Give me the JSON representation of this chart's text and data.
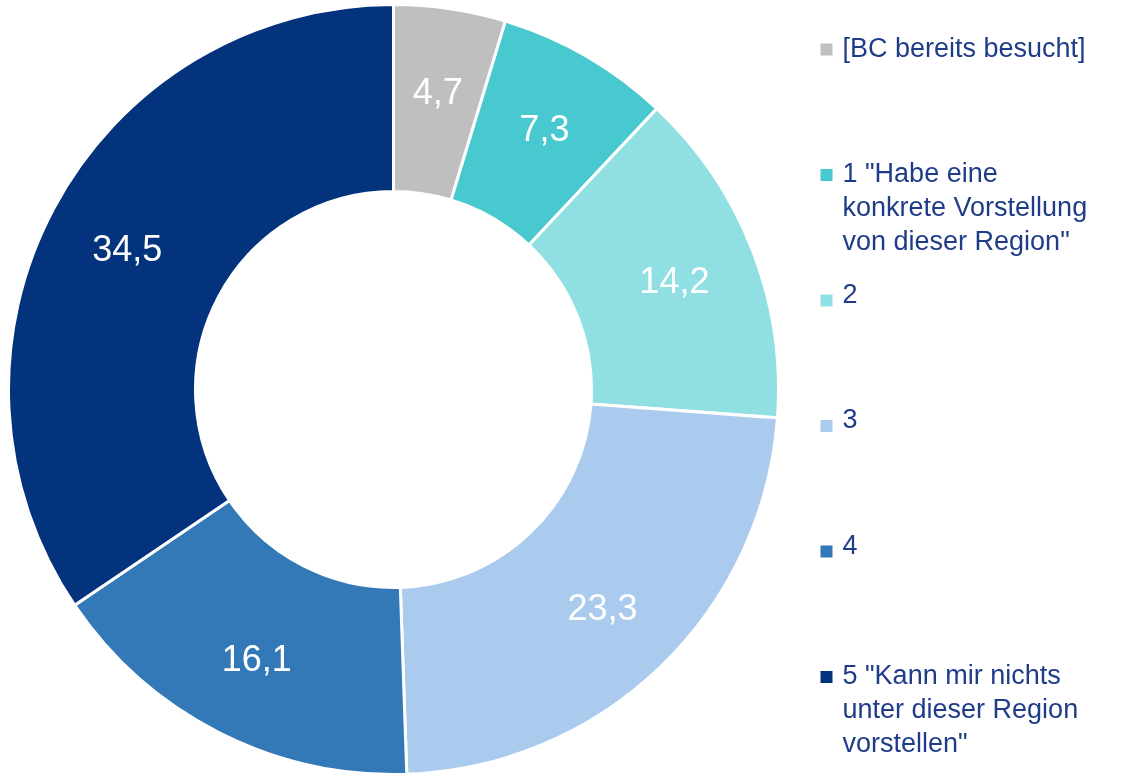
{
  "chart_data": {
    "type": "donut",
    "categories": [
      "[BC bereits besucht]",
      "1 \"Habe eine konkrete Vorstellung von dieser Region\"",
      "2",
      "3",
      "4",
      "5 \"Kann mir nichts unter dieser Region vorstellen\""
    ],
    "values": [
      4.7,
      7.3,
      14.2,
      23.3,
      16.1,
      34.5
    ],
    "value_labels": [
      "4,7",
      "7,3",
      "14,2",
      "23,3",
      "16,1",
      "34,5"
    ],
    "colors": [
      "#bfbfbf",
      "#48c8cf",
      "#90dfe2",
      "#aacbee",
      "#3378b7",
      "#03337c"
    ],
    "legend": "right"
  }
}
